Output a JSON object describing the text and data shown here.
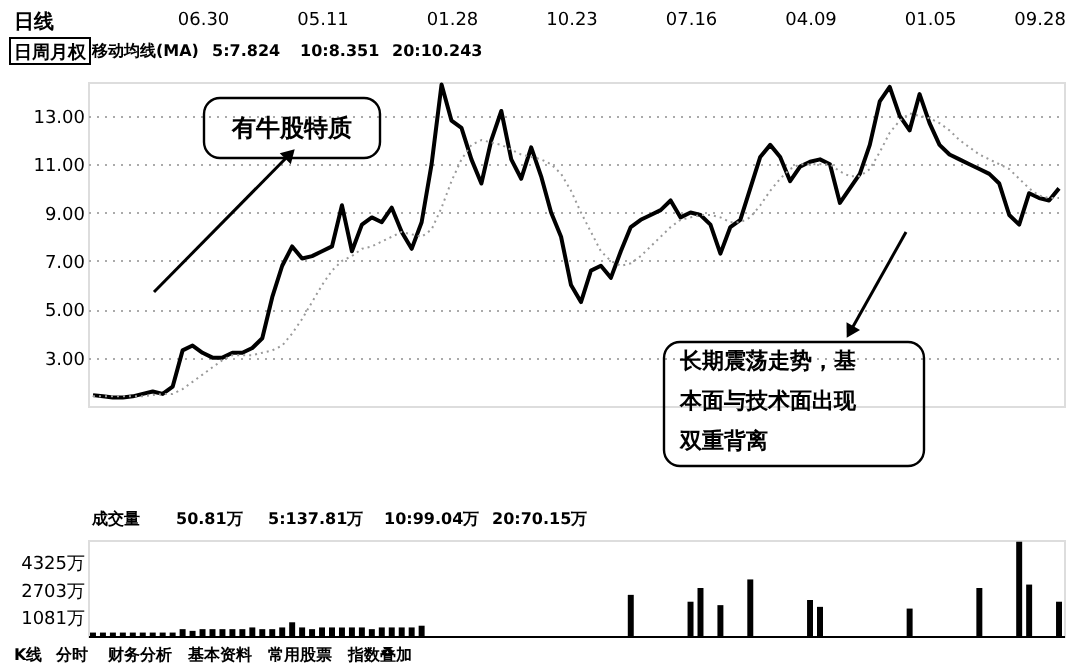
{
  "chart_data": [
    {
      "type": "line",
      "categories": [
        null,
        null,
        null,
        null,
        null,
        null,
        null,
        null,
        null,
        null,
        null,
        "06.30",
        null,
        null,
        null,
        null,
        null,
        null,
        null,
        null,
        null,
        null,
        null,
        "05.11",
        null,
        null,
        null,
        null,
        null,
        null,
        null,
        null,
        null,
        null,
        null,
        null,
        "01.28",
        null,
        null,
        null,
        null,
        null,
        null,
        null,
        null,
        null,
        null,
        null,
        "10.23",
        null,
        null,
        null,
        null,
        null,
        null,
        null,
        null,
        null,
        null,
        null,
        "07.16",
        null,
        null,
        null,
        null,
        null,
        null,
        null,
        null,
        null,
        null,
        null,
        "04.09",
        null,
        null,
        null,
        null,
        null,
        null,
        null,
        null,
        null,
        null,
        null,
        "01.05",
        null,
        null,
        null,
        null,
        null,
        null,
        null,
        null,
        null,
        null,
        "09.28",
        null,
        null
      ],
      "series": [
        {
          "color": "#000000",
          "values": [
            1.45,
            1.4,
            1.35,
            1.35,
            1.4,
            1.5,
            1.6,
            1.5,
            1.8,
            3.3,
            3.5,
            3.2,
            3.0,
            3.0,
            3.2,
            3.2,
            3.4,
            3.8,
            5.5,
            6.8,
            7.6,
            7.1,
            7.2,
            7.4,
            7.6,
            9.3,
            7.4,
            8.5,
            8.8,
            8.6,
            9.2,
            8.2,
            7.5,
            8.6,
            11.0,
            14.3,
            12.8,
            12.5,
            11.2,
            10.2,
            12.0,
            13.2,
            11.2,
            10.4,
            11.7,
            10.5,
            9.0,
            8.0,
            6.0,
            5.3,
            6.6,
            6.8,
            6.3,
            7.4,
            8.4,
            8.7,
            8.9,
            9.1,
            9.5,
            8.8,
            9.0,
            8.9,
            8.5,
            7.3,
            8.4,
            8.7,
            10.0,
            11.3,
            11.8,
            11.3,
            10.3,
            10.9,
            11.1,
            11.2,
            11.0,
            9.4,
            10.0,
            10.6,
            11.8,
            13.6,
            14.2,
            13.0,
            12.4,
            13.9,
            12.7,
            11.8,
            11.4,
            11.2,
            11.0,
            10.8,
            10.6,
            10.2,
            8.9,
            8.5,
            9.8,
            9.6,
            9.5,
            10.0
          ]
        },
        {
          "color": "#9a9a9a",
          "line_style": "dotted",
          "values": [
            1.4,
            1.4,
            1.4,
            1.4,
            1.4,
            1.4,
            1.45,
            1.5,
            1.5,
            1.7,
            2.0,
            2.3,
            2.6,
            2.9,
            3.1,
            3.1,
            3.1,
            3.2,
            3.3,
            3.5,
            4.0,
            4.6,
            5.3,
            6.0,
            6.6,
            7.0,
            7.2,
            7.5,
            7.6,
            7.8,
            8.0,
            8.2,
            8.1,
            8.0,
            8.3,
            9.2,
            10.3,
            11.2,
            11.8,
            12.0,
            11.9,
            11.8,
            11.6,
            11.4,
            11.3,
            11.2,
            11.0,
            10.6,
            9.9,
            9.0,
            8.2,
            7.4,
            7.0,
            6.8,
            6.9,
            7.2,
            7.6,
            8.0,
            8.4,
            8.7,
            8.8,
            8.9,
            8.9,
            8.8,
            8.6,
            8.6,
            8.8,
            9.3,
            9.9,
            10.4,
            10.8,
            11.0,
            11.0,
            11.0,
            11.0,
            10.7,
            10.5,
            10.5,
            10.8,
            11.5,
            12.3,
            12.8,
            13.1,
            13.0,
            12.9,
            12.7,
            12.4,
            12.0,
            11.7,
            11.4,
            11.2,
            11.0,
            10.8,
            10.4,
            10.0,
            9.7,
            9.6,
            9.6
          ]
        }
      ],
      "ylim": [
        1.0,
        14.4
      ],
      "yticks": [
        {
          "value": 3,
          "label": "3.00"
        },
        {
          "value": 5,
          "label": "5.00"
        },
        {
          "value": 7,
          "label": "7.00"
        },
        {
          "value": 9,
          "label": "9.00"
        },
        {
          "value": 11,
          "label": "11.00"
        },
        {
          "value": 13,
          "label": "13.00"
        }
      ],
      "grid": "y",
      "annotations": [
        "日线",
        "日周月权",
        "移动均线(MA)",
        "5:7.824",
        "10:8.351",
        "20:10.243",
        "有牛股特质",
        "长期震荡走势，基本面与技术面出现双重背离"
      ]
    },
    {
      "type": "bar",
      "categories": [
        null,
        null,
        null,
        null,
        null,
        null,
        null,
        null,
        null,
        null,
        null,
        null,
        null,
        null,
        null,
        null,
        null,
        null,
        null,
        null,
        null,
        null,
        null,
        null,
        null,
        null,
        null,
        null,
        null,
        null,
        null,
        null,
        null,
        null,
        null,
        null,
        null,
        null,
        null,
        null,
        null,
        null,
        null,
        null,
        null,
        null,
        null,
        null,
        null,
        null,
        null,
        null,
        null,
        null,
        null,
        null,
        null,
        null,
        null,
        null,
        null,
        null,
        null,
        null,
        null,
        null,
        null,
        null,
        null,
        null,
        null,
        null,
        null,
        null,
        null,
        null,
        null,
        null,
        null,
        null,
        null,
        null,
        null,
        null,
        null,
        null,
        null,
        null,
        null,
        null,
        null,
        null,
        null,
        null,
        null,
        null,
        null,
        null
      ],
      "values": [
        200,
        200,
        200,
        200,
        200,
        200,
        200,
        200,
        200,
        400,
        300,
        400,
        400,
        400,
        400,
        400,
        500,
        400,
        400,
        500,
        800,
        500,
        400,
        500,
        500,
        500,
        500,
        500,
        400,
        500,
        500,
        500,
        500,
        600,
        null,
        null,
        null,
        null,
        null,
        null,
        null,
        null,
        null,
        null,
        null,
        null,
        null,
        null,
        null,
        null,
        null,
        null,
        null,
        null,
        2400,
        null,
        null,
        null,
        null,
        null,
        2000,
        2800,
        null,
        1800,
        null,
        null,
        3300,
        null,
        null,
        null,
        null,
        null,
        2100,
        1700,
        null,
        null,
        null,
        null,
        null,
        null,
        null,
        null,
        1600,
        null,
        null,
        null,
        null,
        null,
        null,
        2800,
        null,
        null,
        null,
        5500,
        3000,
        null,
        null,
        2000
      ],
      "color": "#000000",
      "ylim": [
        0,
        5600
      ],
      "yticks": [
        {
          "value": 1081,
          "label": "1081万"
        },
        {
          "value": 2703,
          "label": "2703万"
        },
        {
          "value": 4325,
          "label": "4325万"
        }
      ],
      "tick_labels": "y",
      "annotations": [
        "成交量",
        "50.81万",
        "5:137.81万",
        "10:99.04万",
        "20:70.15万",
        "K线",
        "分时",
        "财务分析",
        "基本资料",
        "常用股票",
        "指数叠加"
      ]
    }
  ]
}
